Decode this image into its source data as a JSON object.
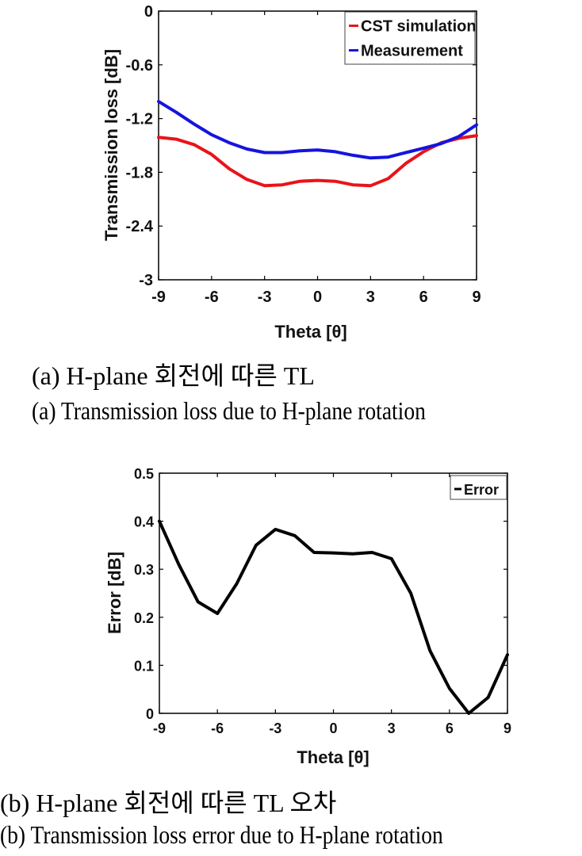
{
  "chart_data": [
    {
      "type": "line",
      "title": "",
      "xlabel": "Theta [θ]",
      "ylabel": "Transmission loss [dB]",
      "xlim": [
        -9,
        9
      ],
      "ylim": [
        -3,
        0
      ],
      "xticks": [
        -9,
        -6,
        -3,
        0,
        3,
        6,
        9
      ],
      "yticks": [
        0,
        -0.6,
        -1.2,
        -1.8,
        -2.4,
        -3
      ],
      "ytick_labels": [
        "0",
        "-0.6",
        "-1.2",
        "-1.8",
        "-2.4",
        "-3"
      ],
      "grid": false,
      "legend_position": "top-right",
      "x": [
        -9,
        -8,
        -7,
        -6,
        -5,
        -4,
        -3,
        -2,
        -1,
        0,
        1,
        2,
        3,
        4,
        5,
        6,
        7,
        8,
        9
      ],
      "series": [
        {
          "name": "CST simulation",
          "color": "#e8141a",
          "values": [
            -1.41,
            -1.43,
            -1.49,
            -1.6,
            -1.76,
            -1.88,
            -1.95,
            -1.94,
            -1.9,
            -1.89,
            -1.9,
            -1.94,
            -1.95,
            -1.87,
            -1.7,
            -1.57,
            -1.47,
            -1.42,
            -1.39
          ]
        },
        {
          "name": "Measurement",
          "color": "#1414e0",
          "values": [
            -1.01,
            -1.13,
            -1.26,
            -1.38,
            -1.47,
            -1.54,
            -1.58,
            -1.58,
            -1.56,
            -1.55,
            -1.57,
            -1.61,
            -1.64,
            -1.63,
            -1.58,
            -1.53,
            -1.48,
            -1.4,
            -1.27
          ]
        }
      ]
    },
    {
      "type": "line",
      "title": "",
      "xlabel": "Theta [θ]",
      "ylabel": "Error [dB]",
      "xlim": [
        -9,
        9
      ],
      "ylim": [
        0,
        0.5
      ],
      "xticks": [
        -9,
        -6,
        -3,
        0,
        3,
        6,
        9
      ],
      "yticks": [
        0,
        0.1,
        0.2,
        0.3,
        0.4,
        0.5
      ],
      "ytick_labels": [
        "0",
        "0.1",
        "0.2",
        "0.3",
        "0.4",
        "0.5"
      ],
      "grid": false,
      "legend_position": "top-right",
      "x": [
        -9,
        -8,
        -7,
        -6,
        -5,
        -4,
        -3,
        -2,
        -1,
        0,
        1,
        2,
        3,
        4,
        5,
        6,
        7,
        8,
        9
      ],
      "series": [
        {
          "name": "Error",
          "color": "#000000",
          "values": [
            0.4,
            0.31,
            0.232,
            0.208,
            0.27,
            0.35,
            0.383,
            0.37,
            0.335,
            0.334,
            0.332,
            0.335,
            0.322,
            0.25,
            0.13,
            0.052,
            0.0,
            0.033,
            0.122
          ]
        }
      ]
    }
  ],
  "captions": {
    "a_korean": "(a) H-plane 회전에 따른 TL",
    "a_english": "(a) Transmission loss due to H-plane rotation",
    "b_korean": "(b) H-plane 회전에 따른 TL 오차",
    "b_english": "(b) Transmission loss error due to H-plane rotation"
  }
}
